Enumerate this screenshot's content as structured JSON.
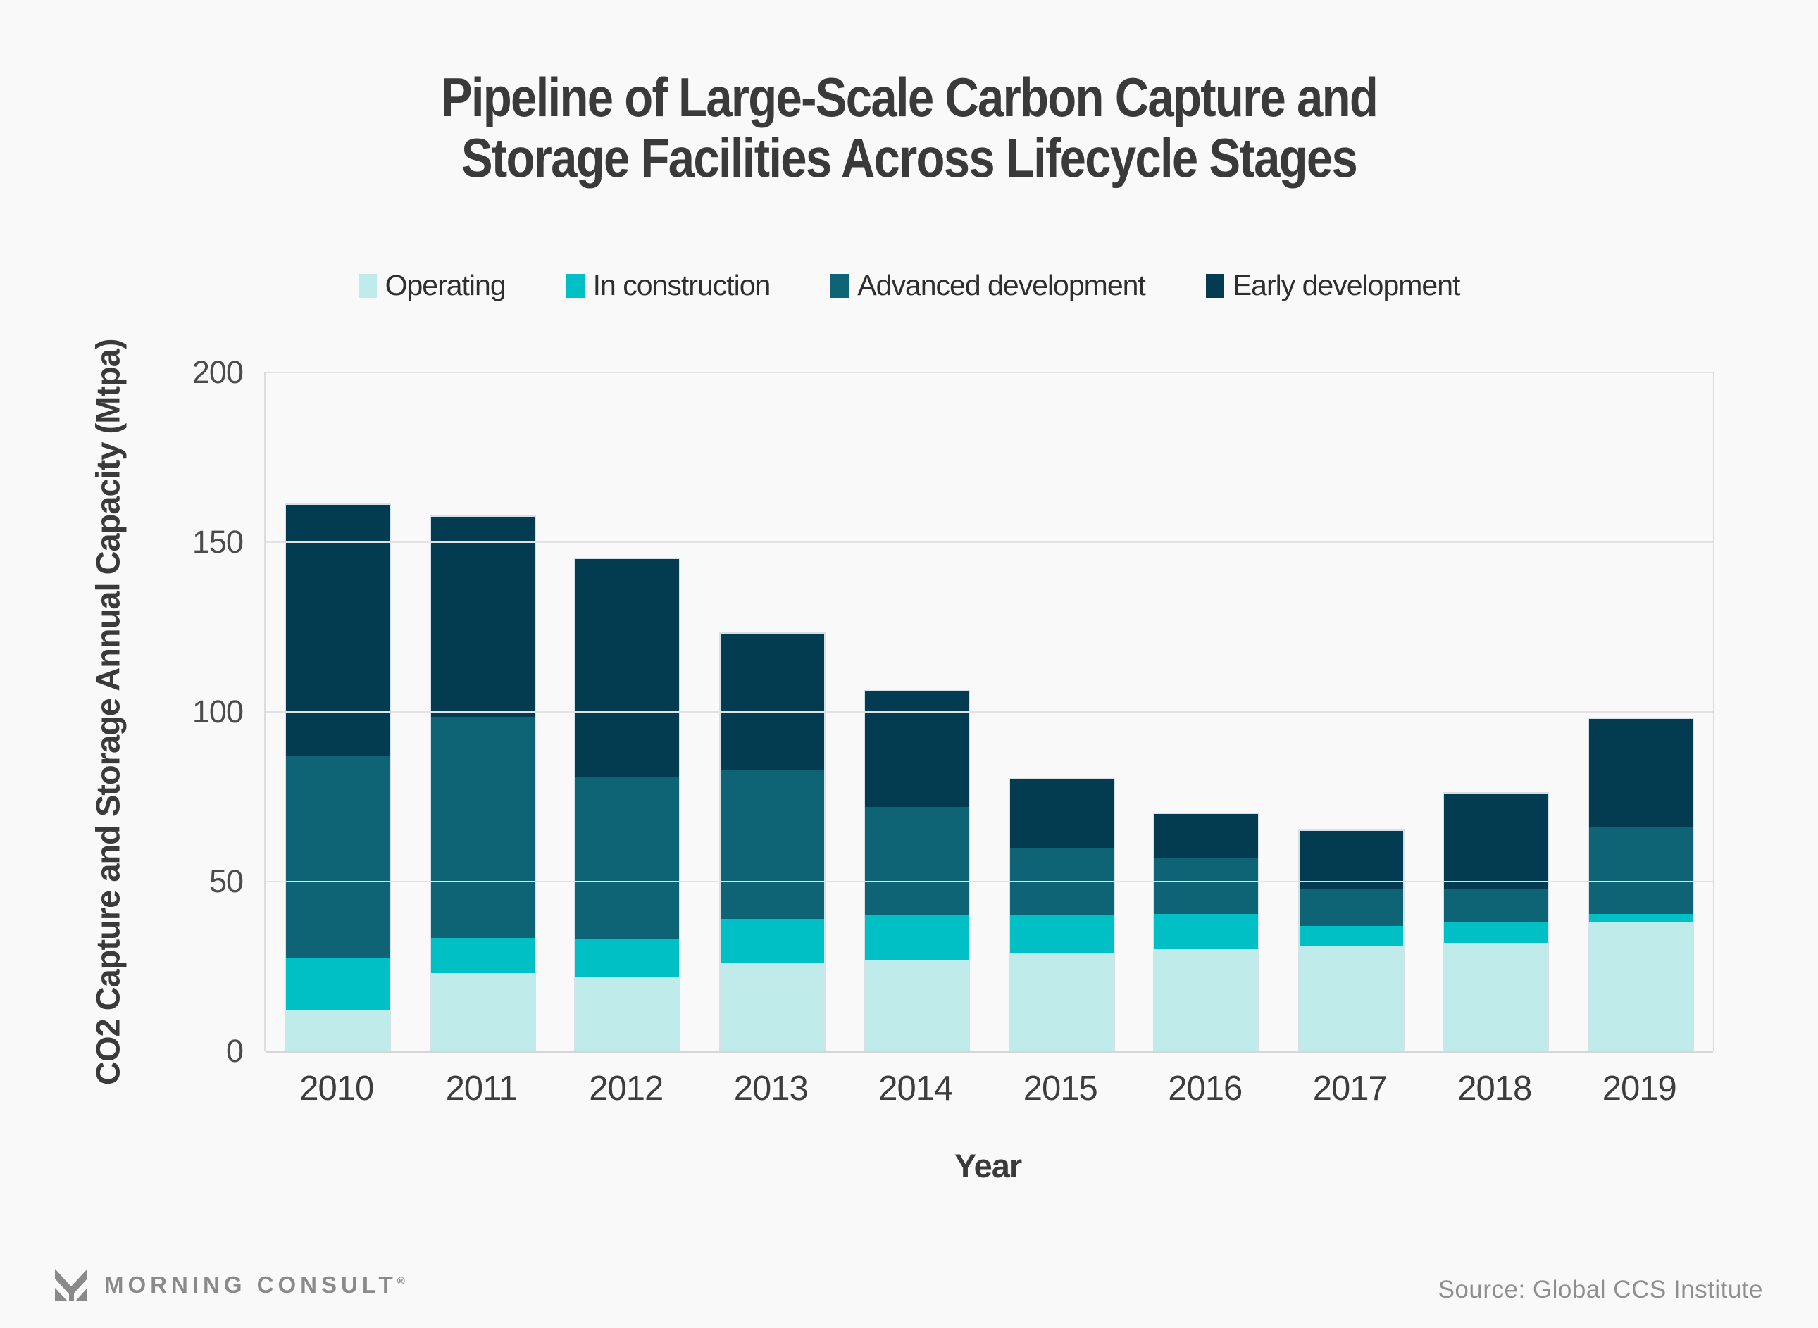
{
  "title": {
    "lines": [
      "Pipeline of Large-Scale Carbon Capture and",
      "Storage Facilities Across Lifecycle Stages"
    ]
  },
  "chart_data": {
    "type": "bar",
    "stacked": true,
    "title": "Pipeline of Large-Scale Carbon Capture and Storage Facilities Across Lifecycle Stages",
    "categories": [
      "2010",
      "2011",
      "2012",
      "2013",
      "2014",
      "2015",
      "2016",
      "2017",
      "2018",
      "2019"
    ],
    "series": [
      {
        "name": "Operating",
        "color": "#bfeceb",
        "values": [
          12,
          23,
          22,
          26,
          27,
          29,
          30,
          31,
          32,
          38
        ]
      },
      {
        "name": "In construction",
        "color": "#00c0c6",
        "values": [
          15.5,
          10.5,
          11,
          13,
          13,
          11,
          10.5,
          6,
          6,
          2.5
        ]
      },
      {
        "name": "Advanced development",
        "color": "#0e6374",
        "values": [
          59.5,
          65,
          48,
          44,
          32,
          20,
          16.5,
          11,
          10,
          25.5
        ]
      },
      {
        "name": "Early development",
        "color": "#033b50",
        "values": [
          74,
          59,
          64,
          40,
          34,
          20,
          13,
          17,
          28,
          32
        ]
      }
    ],
    "totals": [
      161,
      157.5,
      145,
      123,
      106,
      80,
      70,
      65,
      76,
      98
    ],
    "xlabel": "Year",
    "ylabel": "CO2 Capture and Storage Annual Capacity (Mtpa)",
    "ylim": [
      0,
      200
    ],
    "yticks": [
      0,
      50,
      100,
      150,
      200
    ],
    "grid": true,
    "legend_position": "top"
  },
  "colors": {
    "background": "#f9f9f9",
    "title_text": "#3a3a3a",
    "tick_text": "#4c4c4c",
    "gridline": "#e2e2e2",
    "footer_gray": "#8a8a8a"
  },
  "footer": {
    "brand": "MORNING CONSULT",
    "registered": "®",
    "source": "Source: Global CCS Institute"
  }
}
